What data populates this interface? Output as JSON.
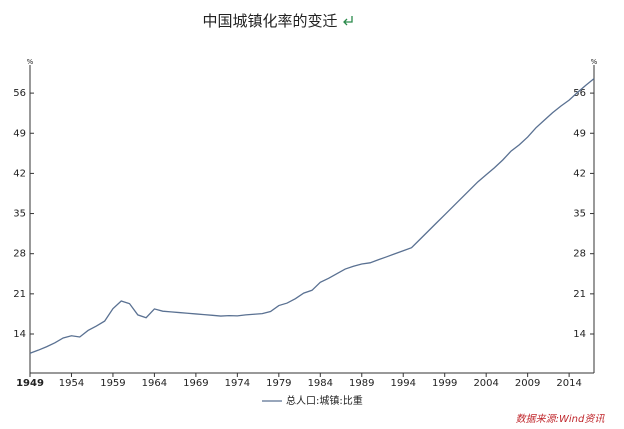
{
  "chart_data": {
    "type": "line",
    "title": "中国城镇化率的变迁",
    "ylabel": "%",
    "y2label": "%",
    "x": [
      1949,
      1950,
      1951,
      1952,
      1953,
      1954,
      1955,
      1956,
      1957,
      1958,
      1959,
      1960,
      1961,
      1962,
      1963,
      1964,
      1965,
      1966,
      1967,
      1968,
      1969,
      1970,
      1971,
      1972,
      1973,
      1974,
      1975,
      1976,
      1977,
      1978,
      1979,
      1980,
      1981,
      1982,
      1983,
      1984,
      1985,
      1986,
      1987,
      1988,
      1989,
      1990,
      1991,
      1992,
      1993,
      1994,
      1995,
      1996,
      1997,
      1998,
      1999,
      2000,
      2001,
      2002,
      2003,
      2004,
      2005,
      2006,
      2007,
      2008,
      2009,
      2010,
      2011,
      2012,
      2013,
      2014,
      2015,
      2016,
      2017
    ],
    "series": [
      {
        "name": "总人口:城镇:比重",
        "color": "#5a7192",
        "values": [
          10.64,
          11.18,
          11.78,
          12.46,
          13.31,
          13.69,
          13.48,
          14.62,
          15.39,
          16.25,
          18.41,
          19.75,
          19.29,
          17.33,
          16.84,
          18.37,
          17.98,
          17.86,
          17.74,
          17.62,
          17.5,
          17.38,
          17.26,
          17.13,
          17.2,
          17.16,
          17.34,
          17.44,
          17.55,
          17.92,
          18.96,
          19.39,
          20.16,
          21.13,
          21.62,
          23.01,
          23.71,
          24.52,
          25.32,
          25.81,
          26.21,
          26.41,
          26.94,
          27.46,
          27.99,
          28.51,
          29.04,
          30.48,
          31.91,
          33.35,
          34.78,
          36.22,
          37.66,
          39.09,
          40.53,
          41.76,
          42.99,
          44.34,
          45.89,
          46.99,
          48.34,
          49.95,
          51.27,
          52.57,
          53.73,
          54.77,
          56.1,
          57.35,
          58.52
        ]
      }
    ],
    "xlim": [
      1949,
      2017
    ],
    "xticks": [
      1949,
      1954,
      1959,
      1964,
      1969,
      1974,
      1979,
      1984,
      1989,
      1994,
      1999,
      2004,
      2009,
      2014
    ],
    "ylim": [
      7.2,
      60.9
    ],
    "yticks": [
      14,
      21,
      28,
      35,
      42,
      49,
      56
    ],
    "y2lim": [
      7.2,
      60.9
    ],
    "y2ticks": [
      14,
      21,
      28,
      35,
      42,
      49,
      56
    ],
    "grid": false,
    "legend": "bottom",
    "source": "数据来源:Wind资讯"
  }
}
